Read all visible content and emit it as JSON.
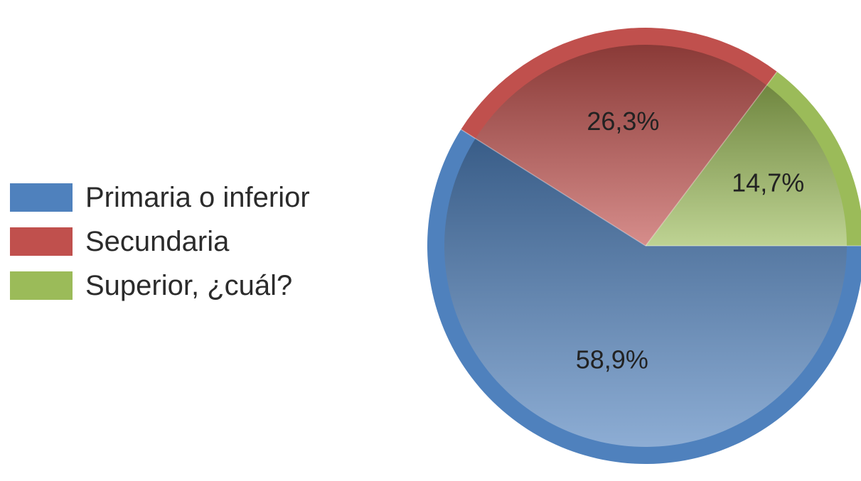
{
  "chart_data": {
    "type": "pie",
    "categories": [
      "Primaria o inferior",
      "Secundaria",
      "Superior, ¿cuál?"
    ],
    "values": [
      58.9,
      26.3,
      14.7
    ],
    "data_labels": [
      "58,9%",
      "26,3%",
      "14,7%"
    ],
    "colors": [
      "#4f81bd",
      "#c0504d",
      "#9bbb59"
    ],
    "legend_position": "left"
  }
}
